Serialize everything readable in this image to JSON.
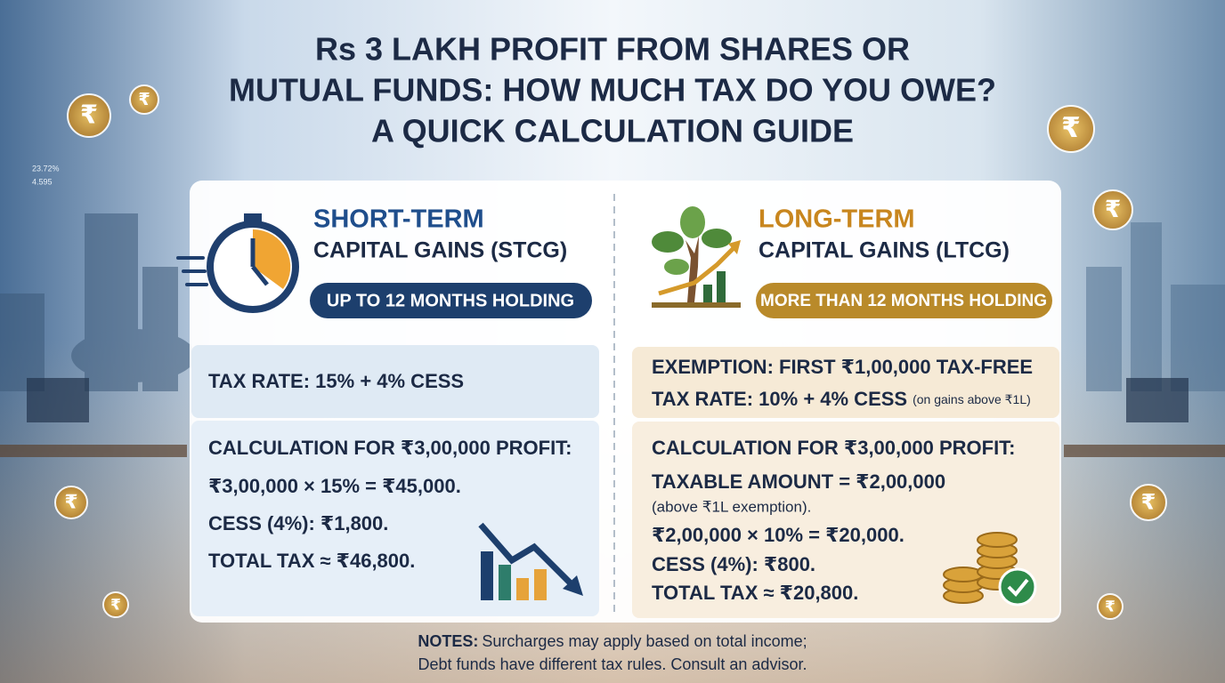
{
  "title": [
    "Rs 3 LAKH PROFIT FROM SHARES OR",
    "MUTUAL FUNDS: HOW MUCH TAX DO YOU OWE?",
    "A QUICK CALCULATION GUIDE"
  ],
  "stcg": {
    "heading": "SHORT-TERM",
    "subheading": "CAPITAL GAINS (STCG)",
    "badge": "UP TO 12 MONTHS HOLDING",
    "rate": "TAX RATE: 15% + 4% CESS",
    "calc_title": "CALCULATION FOR ₹3,00,000 PROFIT:",
    "lines": [
      "₹3,00,000 × 15% = ₹45,000.",
      "CESS (4%): ₹1,800.",
      "TOTAL TAX ≈ ₹46,800."
    ]
  },
  "ltcg": {
    "heading": "LONG-TERM",
    "subheading": "CAPITAL GAINS (LTCG)",
    "badge": "MORE THAN 12 MONTHS HOLDING",
    "exemption": "EXEMPTION: FIRST ₹1,00,000 TAX-FREE",
    "rate": "TAX RATE: 10% + 4% CESS",
    "rate_note": "(on gains above ₹1L)",
    "calc_title": "CALCULATION FOR ₹3,00,000 PROFIT:",
    "taxable": "TAXABLE AMOUNT = ₹2,00,000",
    "taxable_note": "(above ₹1L exemption).",
    "lines": [
      "₹2,00,000 × 10% = ₹20,000.",
      "CESS (4%): ₹800.",
      "TOTAL TAX ≈ ₹20,800."
    ]
  },
  "notes": {
    "label": "NOTES:",
    "lines": [
      "Surcharges may apply based on total income;",
      "Debt funds have different tax rules. Consult an advisor."
    ]
  },
  "decor": {
    "coin_symbol": "₹",
    "labels": [
      "23.72%",
      "4.595"
    ]
  }
}
